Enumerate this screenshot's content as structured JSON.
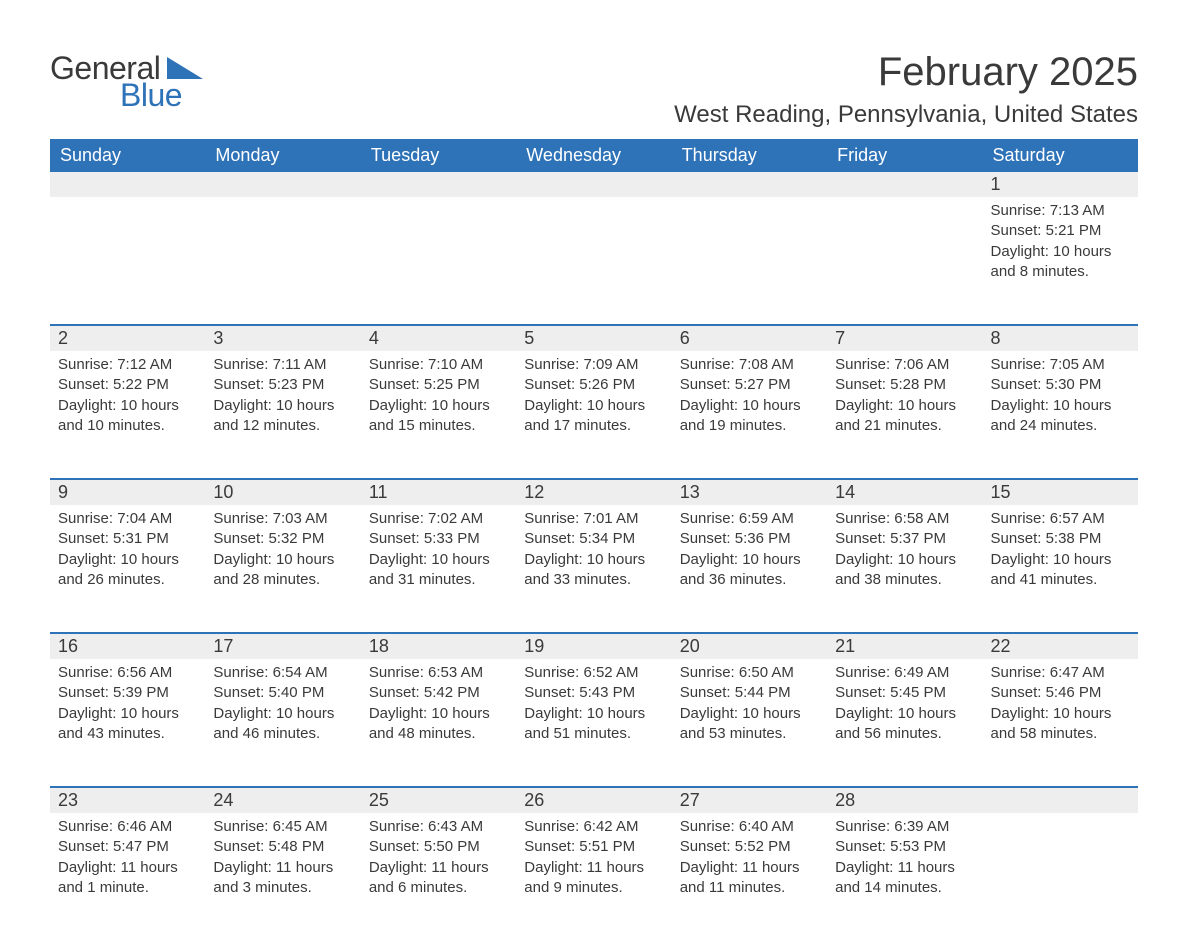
{
  "logo": {
    "text1": "General",
    "text2": "Blue",
    "accent_color": "#2e72b8"
  },
  "title": "February 2025",
  "location": "West Reading, Pennsylvania, United States",
  "colors": {
    "header_bg": "#2e72b8",
    "header_text": "#ffffff",
    "daynum_bg": "#eeeeee",
    "row_border": "#2e72b8",
    "text": "#3a3a3a",
    "background": "#ffffff"
  },
  "typography": {
    "title_fontsize": 40,
    "location_fontsize": 24,
    "dayheader_fontsize": 18,
    "daynum_fontsize": 18,
    "cell_fontsize": 15
  },
  "day_headers": [
    "Sunday",
    "Monday",
    "Tuesday",
    "Wednesday",
    "Thursday",
    "Friday",
    "Saturday"
  ],
  "weeks": [
    [
      null,
      null,
      null,
      null,
      null,
      null,
      {
        "n": "1",
        "sunrise": "Sunrise: 7:13 AM",
        "sunset": "Sunset: 5:21 PM",
        "daylight": "Daylight: 10 hours and 8 minutes."
      }
    ],
    [
      {
        "n": "2",
        "sunrise": "Sunrise: 7:12 AM",
        "sunset": "Sunset: 5:22 PM",
        "daylight": "Daylight: 10 hours and 10 minutes."
      },
      {
        "n": "3",
        "sunrise": "Sunrise: 7:11 AM",
        "sunset": "Sunset: 5:23 PM",
        "daylight": "Daylight: 10 hours and 12 minutes."
      },
      {
        "n": "4",
        "sunrise": "Sunrise: 7:10 AM",
        "sunset": "Sunset: 5:25 PM",
        "daylight": "Daylight: 10 hours and 15 minutes."
      },
      {
        "n": "5",
        "sunrise": "Sunrise: 7:09 AM",
        "sunset": "Sunset: 5:26 PM",
        "daylight": "Daylight: 10 hours and 17 minutes."
      },
      {
        "n": "6",
        "sunrise": "Sunrise: 7:08 AM",
        "sunset": "Sunset: 5:27 PM",
        "daylight": "Daylight: 10 hours and 19 minutes."
      },
      {
        "n": "7",
        "sunrise": "Sunrise: 7:06 AM",
        "sunset": "Sunset: 5:28 PM",
        "daylight": "Daylight: 10 hours and 21 minutes."
      },
      {
        "n": "8",
        "sunrise": "Sunrise: 7:05 AM",
        "sunset": "Sunset: 5:30 PM",
        "daylight": "Daylight: 10 hours and 24 minutes."
      }
    ],
    [
      {
        "n": "9",
        "sunrise": "Sunrise: 7:04 AM",
        "sunset": "Sunset: 5:31 PM",
        "daylight": "Daylight: 10 hours and 26 minutes."
      },
      {
        "n": "10",
        "sunrise": "Sunrise: 7:03 AM",
        "sunset": "Sunset: 5:32 PM",
        "daylight": "Daylight: 10 hours and 28 minutes."
      },
      {
        "n": "11",
        "sunrise": "Sunrise: 7:02 AM",
        "sunset": "Sunset: 5:33 PM",
        "daylight": "Daylight: 10 hours and 31 minutes."
      },
      {
        "n": "12",
        "sunrise": "Sunrise: 7:01 AM",
        "sunset": "Sunset: 5:34 PM",
        "daylight": "Daylight: 10 hours and 33 minutes."
      },
      {
        "n": "13",
        "sunrise": "Sunrise: 6:59 AM",
        "sunset": "Sunset: 5:36 PM",
        "daylight": "Daylight: 10 hours and 36 minutes."
      },
      {
        "n": "14",
        "sunrise": "Sunrise: 6:58 AM",
        "sunset": "Sunset: 5:37 PM",
        "daylight": "Daylight: 10 hours and 38 minutes."
      },
      {
        "n": "15",
        "sunrise": "Sunrise: 6:57 AM",
        "sunset": "Sunset: 5:38 PM",
        "daylight": "Daylight: 10 hours and 41 minutes."
      }
    ],
    [
      {
        "n": "16",
        "sunrise": "Sunrise: 6:56 AM",
        "sunset": "Sunset: 5:39 PM",
        "daylight": "Daylight: 10 hours and 43 minutes."
      },
      {
        "n": "17",
        "sunrise": "Sunrise: 6:54 AM",
        "sunset": "Sunset: 5:40 PM",
        "daylight": "Daylight: 10 hours and 46 minutes."
      },
      {
        "n": "18",
        "sunrise": "Sunrise: 6:53 AM",
        "sunset": "Sunset: 5:42 PM",
        "daylight": "Daylight: 10 hours and 48 minutes."
      },
      {
        "n": "19",
        "sunrise": "Sunrise: 6:52 AM",
        "sunset": "Sunset: 5:43 PM",
        "daylight": "Daylight: 10 hours and 51 minutes."
      },
      {
        "n": "20",
        "sunrise": "Sunrise: 6:50 AM",
        "sunset": "Sunset: 5:44 PM",
        "daylight": "Daylight: 10 hours and 53 minutes."
      },
      {
        "n": "21",
        "sunrise": "Sunrise: 6:49 AM",
        "sunset": "Sunset: 5:45 PM",
        "daylight": "Daylight: 10 hours and 56 minutes."
      },
      {
        "n": "22",
        "sunrise": "Sunrise: 6:47 AM",
        "sunset": "Sunset: 5:46 PM",
        "daylight": "Daylight: 10 hours and 58 minutes."
      }
    ],
    [
      {
        "n": "23",
        "sunrise": "Sunrise: 6:46 AM",
        "sunset": "Sunset: 5:47 PM",
        "daylight": "Daylight: 11 hours and 1 minute."
      },
      {
        "n": "24",
        "sunrise": "Sunrise: 6:45 AM",
        "sunset": "Sunset: 5:48 PM",
        "daylight": "Daylight: 11 hours and 3 minutes."
      },
      {
        "n": "25",
        "sunrise": "Sunrise: 6:43 AM",
        "sunset": "Sunset: 5:50 PM",
        "daylight": "Daylight: 11 hours and 6 minutes."
      },
      {
        "n": "26",
        "sunrise": "Sunrise: 6:42 AM",
        "sunset": "Sunset: 5:51 PM",
        "daylight": "Daylight: 11 hours and 9 minutes."
      },
      {
        "n": "27",
        "sunrise": "Sunrise: 6:40 AM",
        "sunset": "Sunset: 5:52 PM",
        "daylight": "Daylight: 11 hours and 11 minutes."
      },
      {
        "n": "28",
        "sunrise": "Sunrise: 6:39 AM",
        "sunset": "Sunset: 5:53 PM",
        "daylight": "Daylight: 11 hours and 14 minutes."
      },
      null
    ]
  ]
}
